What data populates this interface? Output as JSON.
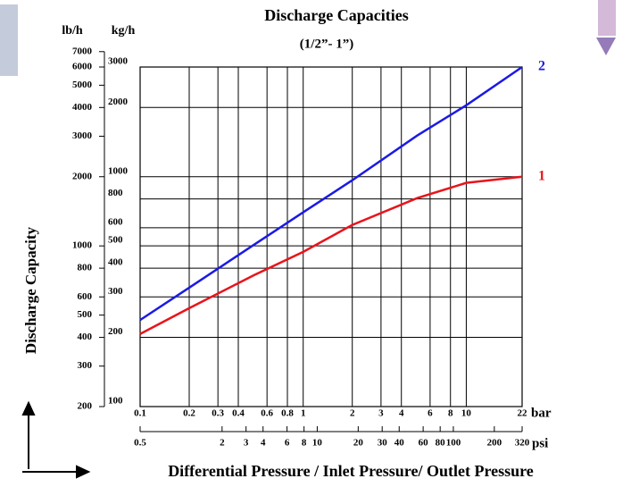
{
  "chart_data": {
    "type": "line",
    "title": "Discharge Capacities",
    "subtitle": "(1/2”- 1”)",
    "ylabel": "kg/h",
    "y2label": "lb/h",
    "xlabel": "bar",
    "x2label": "psi",
    "ytitle": "Discharge Capacity",
    "xtitle": "Differential Pressure / Inlet Pressure/ Outlet Pressure",
    "log_x": true,
    "log_y": true,
    "grid": true,
    "x": [
      0.1,
      0.2,
      0.5,
      1,
      2,
      5,
      10,
      22
    ],
    "series": [
      {
        "name": "1",
        "color": "#e8141b",
        "values": [
          207,
          268,
          373,
          471,
          617,
          807,
          940,
          1000
        ]
      },
      {
        "name": "2",
        "color": "#1a1ae6",
        "values": [
          238,
          329,
          506,
          700,
          965,
          1510,
          2045,
          3000
        ]
      }
    ],
    "xlim": [
      0.1,
      22
    ],
    "xticks": [
      0.1,
      0.2,
      0.3,
      0.4,
      0.6,
      0.8,
      1,
      2,
      3,
      4,
      6,
      8,
      10,
      22
    ],
    "x2lim": [
      0.5,
      320
    ],
    "x2ticks": [
      0.5,
      2,
      3,
      4,
      6,
      8,
      10,
      20,
      30,
      40,
      60,
      80,
      100,
      200,
      320
    ],
    "ylim": [
      100,
      3000
    ],
    "yticks": [
      100,
      200,
      300,
      400,
      500,
      600,
      800,
      1000,
      2000,
      3000
    ],
    "y2lim": [
      200,
      6000
    ],
    "y2ticks": [
      200,
      300,
      400,
      500,
      600,
      800,
      1000,
      2000,
      3000,
      4000,
      5000,
      6000,
      7000
    ]
  }
}
